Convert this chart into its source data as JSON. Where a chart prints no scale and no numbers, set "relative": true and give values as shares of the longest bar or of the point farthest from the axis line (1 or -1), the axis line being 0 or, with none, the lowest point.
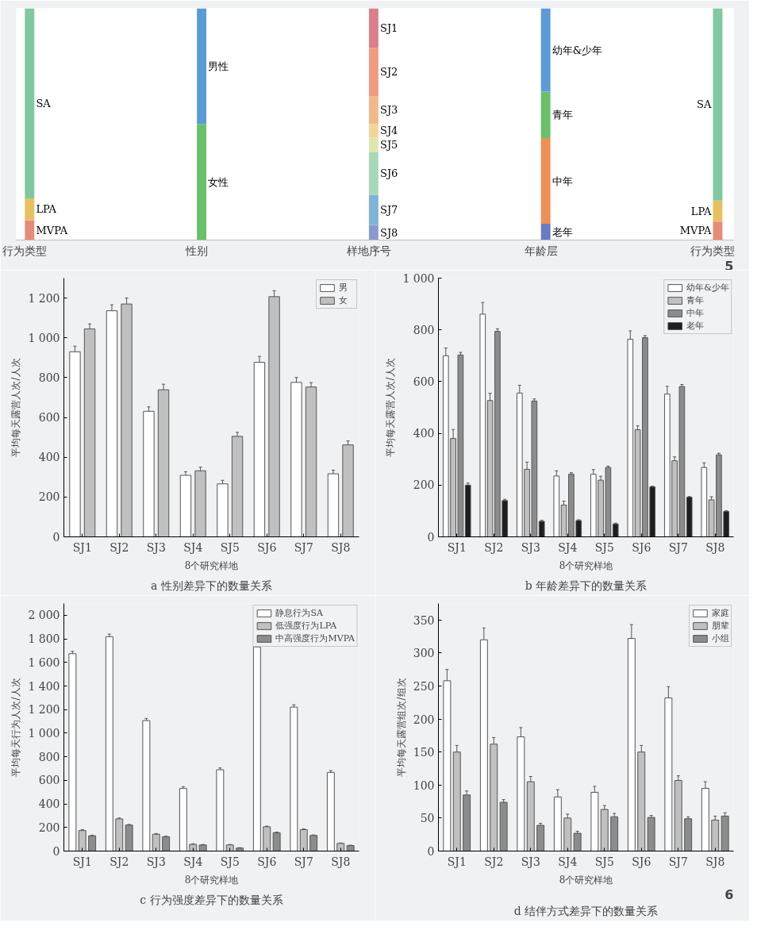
{
  "chart_data": [
    {
      "type": "bar",
      "stacked": true,
      "relative": true,
      "annotations": [
        "5"
      ],
      "categories": [
        "行为类型",
        "性别",
        "样地序号",
        "年龄层",
        "行为类型"
      ],
      "series": [
        {
          "name": "MVPA",
          "color": "#e88a78",
          "values": [
            0.085,
            null,
            null,
            null,
            0.08
          ]
        },
        {
          "name": "LPA",
          "color": "#e8c060",
          "values": [
            0.095,
            null,
            null,
            null,
            0.09
          ]
        },
        {
          "name": "SA",
          "color": "#7fc8a0",
          "values": [
            0.82,
            null,
            null,
            null,
            0.83
          ]
        },
        {
          "name": "女性",
          "color": "#6abf69",
          "values": [
            null,
            0.5,
            null,
            null,
            null
          ]
        },
        {
          "name": "男性",
          "color": "#5b9bd5",
          "values": [
            null,
            0.5,
            null,
            null,
            null
          ]
        },
        {
          "name": "SJ8",
          "color": "#8a9ad0",
          "values": [
            null,
            null,
            0.065,
            null,
            null
          ]
        },
        {
          "name": "SJ7",
          "color": "#7fb3d8",
          "values": [
            null,
            null,
            0.13,
            null,
            null
          ]
        },
        {
          "name": "SJ6",
          "color": "#a8d8b8",
          "values": [
            null,
            null,
            0.185,
            null,
            null
          ]
        },
        {
          "name": "SJ5",
          "color": "#dfe6b0",
          "values": [
            null,
            null,
            0.063,
            null,
            null
          ]
        },
        {
          "name": "SJ4",
          "color": "#f2d59a",
          "values": [
            null,
            null,
            0.057,
            null,
            null
          ]
        },
        {
          "name": "SJ3",
          "color": "#f2b98a",
          "values": [
            null,
            null,
            0.12,
            null,
            null
          ]
        },
        {
          "name": "SJ2",
          "color": "#ef9c80",
          "values": [
            null,
            null,
            0.21,
            null,
            null
          ]
        },
        {
          "name": "SJ1",
          "color": "#d9808a",
          "values": [
            null,
            null,
            0.17,
            null,
            null
          ]
        },
        {
          "name": "老年",
          "color": "#6a7cc8",
          "values": [
            null,
            null,
            null,
            0.07,
            null
          ]
        },
        {
          "name": "中年",
          "color": "#ee8f55",
          "values": [
            null,
            null,
            null,
            0.37,
            null
          ]
        },
        {
          "name": "青年",
          "color": "#6abf69",
          "values": [
            null,
            null,
            null,
            0.2,
            null
          ]
        },
        {
          "name": "幼年&少年",
          "color": "#5b9bd5",
          "values": [
            null,
            null,
            null,
            0.36,
            null
          ]
        }
      ]
    },
    {
      "type": "bar",
      "title": "a 性别差异下的数量关系",
      "xlabel": "8个研究样地",
      "ylabel": "平均每天露营人次/人次",
      "categories": [
        "SJ1",
        "SJ2",
        "SJ3",
        "SJ4",
        "SJ5",
        "SJ6",
        "SJ7",
        "SJ8"
      ],
      "ylim": [
        0,
        1300
      ],
      "yticks": [
        0,
        200,
        400,
        600,
        800,
        {
          "value": 1000,
          "label": "1 000"
        },
        {
          "value": 1200,
          "label": "1 200"
        }
      ],
      "grid": false,
      "legend": "top right",
      "series": [
        {
          "name": "男",
          "color": "#ffffff",
          "values": [
            930,
            1136,
            631,
            309,
            266,
            877,
            776,
            317
          ],
          "errors": [
            28,
            30,
            22,
            18,
            18,
            30,
            25,
            18
          ]
        },
        {
          "name": "女",
          "color": "#c0c0c0",
          "values": [
            1045,
            1170,
            739,
            332,
            505,
            1207,
            753,
            462
          ],
          "errors": [
            25,
            30,
            28,
            18,
            20,
            30,
            22,
            20
          ]
        }
      ]
    },
    {
      "type": "bar",
      "title": "b 年龄差异下的数量关系",
      "xlabel": "8个研究样地",
      "ylabel": "平均每天露营人次/人次",
      "categories": [
        "SJ1",
        "SJ2",
        "SJ3",
        "SJ4",
        "SJ5",
        "SJ6",
        "SJ7",
        "SJ8"
      ],
      "ylim": [
        0,
        1000
      ],
      "yticks": [
        0,
        200,
        400,
        600,
        800,
        {
          "value": 1000,
          "label": "1 000"
        }
      ],
      "grid": false,
      "legend": "top right",
      "series": [
        {
          "name": "幼年&少年",
          "color": "#ffffff",
          "values": [
            700,
            861,
            556,
            235,
            242,
            764,
            552,
            268
          ],
          "errors": [
            30,
            45,
            30,
            20,
            18,
            32,
            30,
            18
          ]
        },
        {
          "name": "青年",
          "color": "#c0c0c0",
          "values": [
            380,
            527,
            261,
            123,
            219,
            414,
            294,
            143
          ],
          "errors": [
            35,
            28,
            28,
            15,
            15,
            15,
            15,
            12
          ]
        },
        {
          "name": "中年",
          "color": "#8c8c8c",
          "values": [
            703,
            794,
            525,
            242,
            268,
            770,
            581,
            317
          ],
          "errors": [
            10,
            10,
            8,
            6,
            5,
            8,
            8,
            6
          ]
        },
        {
          "name": "老年",
          "color": "#1e1e1e",
          "values": [
            200,
            140,
            60,
            63,
            50,
            193,
            153,
            98
          ],
          "errors": [
            8,
            5,
            4,
            3,
            3,
            3,
            3,
            3
          ]
        }
      ]
    },
    {
      "type": "bar",
      "title": "c 行为强度差异下的数量关系",
      "xlabel": "8个研究样地",
      "ylabel": "平均每天行为人次/人次",
      "categories": [
        "SJ1",
        "SJ2",
        "SJ3",
        "SJ4",
        "SJ5",
        "SJ6",
        "SJ7",
        "SJ8"
      ],
      "ylim": [
        0,
        2100
      ],
      "yticks": [
        0,
        200,
        400,
        600,
        800,
        {
          "value": 1000,
          "label": "1 000"
        },
        {
          "value": 1200,
          "label": "1 200"
        },
        {
          "value": 1400,
          "label": "1 400"
        },
        {
          "value": 1600,
          "label": "1 600"
        },
        {
          "value": 1800,
          "label": "1 800"
        },
        {
          "value": 2000,
          "label": "2 000"
        }
      ],
      "grid": false,
      "legend": "top right",
      "series": [
        {
          "name": "静息行为SA",
          "color": "#ffffff",
          "values": [
            1674,
            1818,
            1107,
            531,
            690,
            1732,
            1221,
            667
          ],
          "errors": [
            20,
            22,
            18,
            15,
            15,
            25,
            20,
            15
          ]
        },
        {
          "name": "低强度行为LPA",
          "color": "#c0c0c0",
          "values": [
            174,
            273,
            143,
            57,
            52,
            206,
            182,
            65
          ],
          "errors": [
            8,
            8,
            6,
            5,
            4,
            6,
            6,
            4
          ]
        },
        {
          "name": "中高强度行为MVPA",
          "color": "#8c8c8c",
          "values": [
            130,
            221,
            122,
            52,
            26,
            156,
            133,
            47
          ],
          "errors": [
            5,
            5,
            4,
            4,
            3,
            5,
            4,
            3
          ]
        }
      ]
    },
    {
      "type": "bar",
      "title": "d 结伴方式差异下的数量关系",
      "xlabel": "8个研究样地",
      "ylabel": "平均每天露营组次/组次",
      "categories": [
        "SJ1",
        "SJ2",
        "SJ3",
        "SJ4",
        "SJ5",
        "SJ6",
        "SJ7",
        "SJ8"
      ],
      "ylim": [
        0,
        375
      ],
      "yticks": [
        0,
        50,
        100,
        150,
        200,
        250,
        300,
        350
      ],
      "grid": false,
      "legend": "top right",
      "annotations": [
        "6"
      ],
      "series": [
        {
          "name": "家庭",
          "color": "#ffffff",
          "values": [
            258,
            320,
            173,
            82,
            89,
            322,
            232,
            95
          ],
          "errors": [
            17,
            18,
            14,
            11,
            9,
            21,
            17,
            10
          ]
        },
        {
          "name": "朋辈",
          "color": "#c0c0c0",
          "values": [
            150,
            162,
            105,
            50,
            63,
            150,
            107,
            47
          ],
          "errors": [
            10,
            10,
            8,
            6,
            6,
            10,
            7,
            6
          ]
        },
        {
          "name": "小组",
          "color": "#8c8c8c",
          "values": [
            85,
            74,
            39,
            27,
            52,
            51,
            49,
            53
          ],
          "errors": [
            6,
            4,
            3,
            3,
            5,
            3,
            3,
            5
          ]
        }
      ]
    }
  ]
}
